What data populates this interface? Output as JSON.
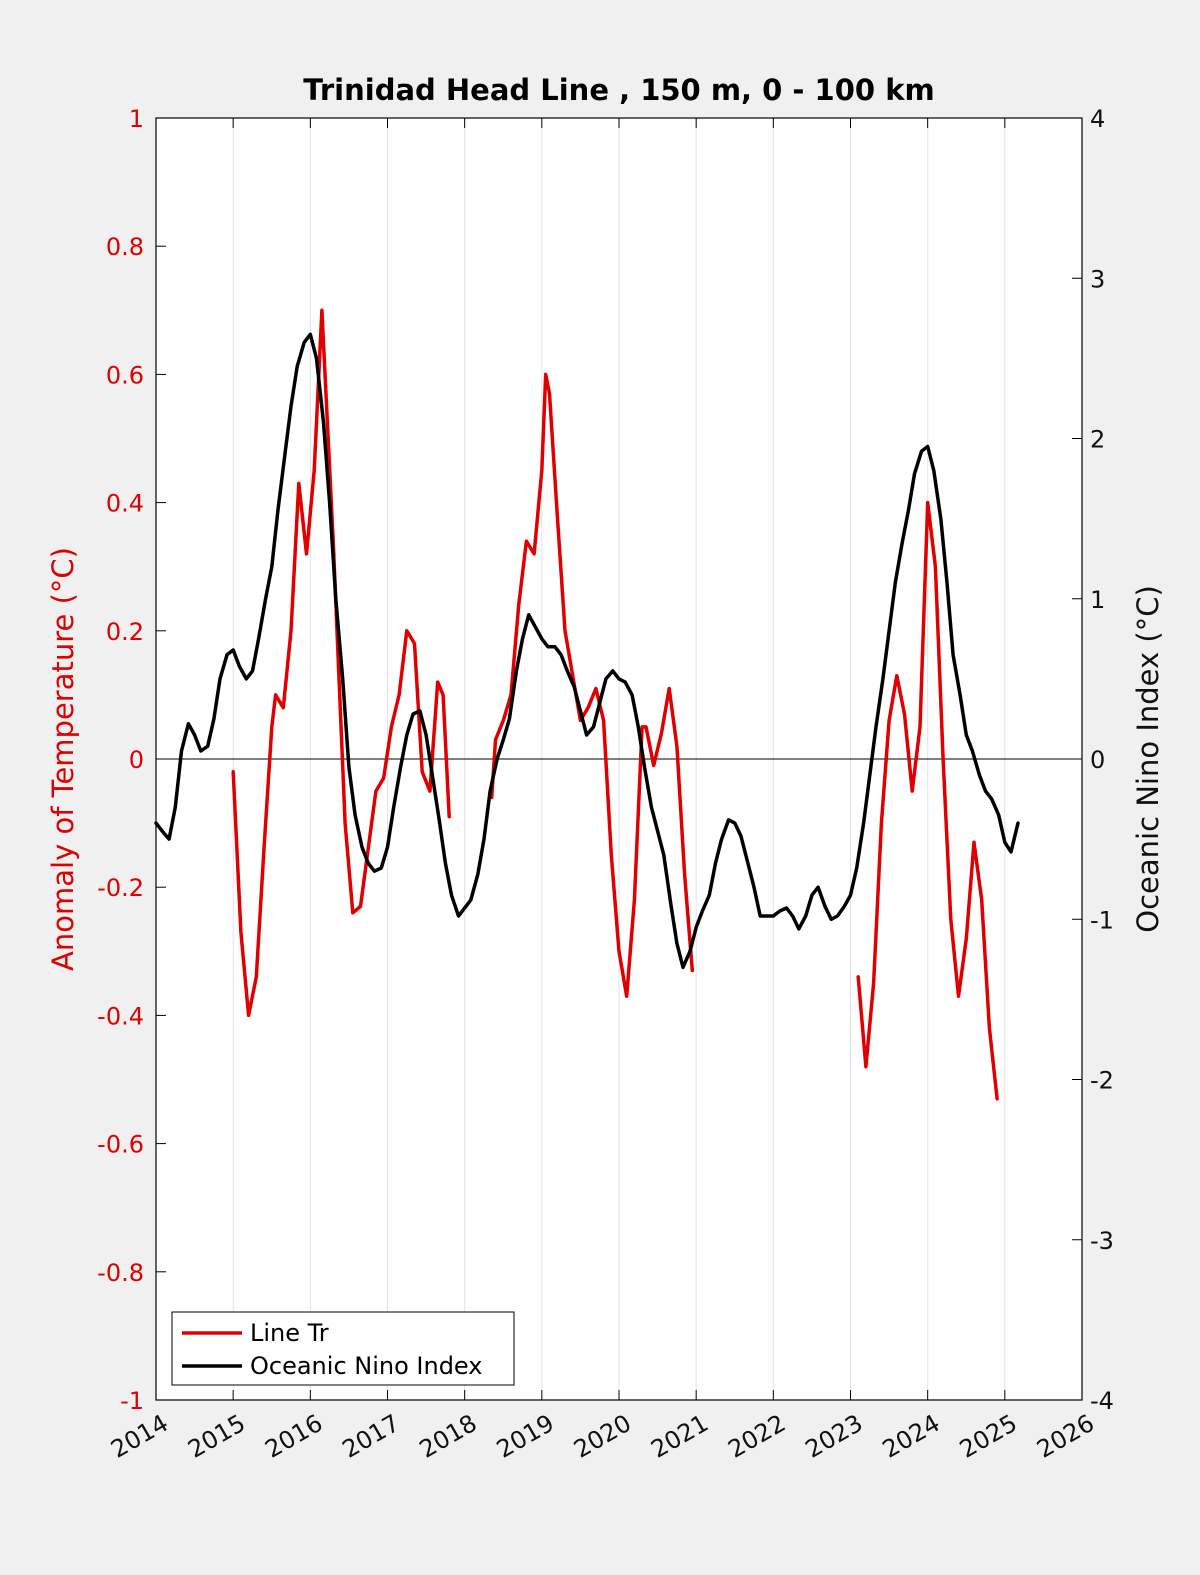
{
  "chart_data": {
    "type": "line",
    "title": "Trinidad Head Line , 150 m, 0 - 100 km",
    "x_ticks": [
      "2014",
      "2015",
      "2016",
      "2017",
      "2018",
      "2019",
      "2020",
      "2021",
      "2022",
      "2023",
      "2024",
      "2025",
      "2026"
    ],
    "xlim": [
      2014,
      2026
    ],
    "left_axis": {
      "label": "Anomaly of Temperature (°C)",
      "ylim": [
        -1,
        1
      ],
      "ticks": [
        "-1",
        "-0.8",
        "-0.6",
        "-0.4",
        "-0.2",
        "0",
        "0.2",
        "0.4",
        "0.6",
        "0.8",
        "1"
      ],
      "color": "#e00000"
    },
    "right_axis": {
      "label": "Oceanic Nino Index (°C)",
      "ylim": [
        -4,
        4
      ],
      "ticks": [
        "-4",
        "-3",
        "-2",
        "-1",
        "0",
        "1",
        "2",
        "3",
        "4"
      ],
      "color": "#000000"
    },
    "grid": "vertical",
    "legend_position": "bottom-left",
    "series": [
      {
        "name": "Line Tr",
        "axis": "left",
        "color": "#e00000",
        "segments": [
          [
            [
              2015.0,
              -0.02
            ],
            [
              2015.1,
              -0.27
            ],
            [
              2015.2,
              -0.4
            ],
            [
              2015.3,
              -0.34
            ],
            [
              2015.4,
              -0.14
            ],
            [
              2015.5,
              0.05
            ],
            [
              2015.55,
              0.1
            ],
            [
              2015.65,
              0.08
            ],
            [
              2015.75,
              0.2
            ],
            [
              2015.85,
              0.43
            ],
            [
              2015.95,
              0.32
            ],
            [
              2016.05,
              0.45
            ],
            [
              2016.15,
              0.7
            ],
            [
              2016.3,
              0.33
            ],
            [
              2016.45,
              -0.1
            ],
            [
              2016.55,
              -0.24
            ],
            [
              2016.65,
              -0.23
            ],
            [
              2016.75,
              -0.14
            ],
            [
              2016.85,
              -0.05
            ],
            [
              2016.95,
              -0.03
            ],
            [
              2017.05,
              0.05
            ],
            [
              2017.15,
              0.1
            ],
            [
              2017.25,
              0.2
            ],
            [
              2017.35,
              0.18
            ],
            [
              2017.45,
              -0.02
            ],
            [
              2017.55,
              -0.05
            ],
            [
              2017.65,
              0.12
            ],
            [
              2017.72,
              0.1
            ],
            [
              2017.8,
              -0.09
            ]
          ],
          [
            [
              2018.35,
              -0.06
            ],
            [
              2018.4,
              0.03
            ],
            [
              2018.5,
              0.06
            ],
            [
              2018.6,
              0.1
            ],
            [
              2018.7,
              0.24
            ],
            [
              2018.8,
              0.34
            ],
            [
              2018.9,
              0.32
            ],
            [
              2019.0,
              0.45
            ],
            [
              2019.05,
              0.6
            ],
            [
              2019.1,
              0.57
            ],
            [
              2019.2,
              0.38
            ],
            [
              2019.3,
              0.2
            ],
            [
              2019.4,
              0.13
            ],
            [
              2019.5,
              0.06
            ],
            [
              2019.6,
              0.08
            ],
            [
              2019.7,
              0.11
            ],
            [
              2019.8,
              0.06
            ],
            [
              2019.9,
              -0.15
            ],
            [
              2020.0,
              -0.3
            ],
            [
              2020.1,
              -0.37
            ],
            [
              2020.2,
              -0.22
            ],
            [
              2020.3,
              0.05
            ],
            [
              2020.35,
              0.05
            ],
            [
              2020.45,
              -0.01
            ],
            [
              2020.55,
              0.04
            ],
            [
              2020.65,
              0.11
            ],
            [
              2020.75,
              0.02
            ],
            [
              2020.85,
              -0.18
            ],
            [
              2020.95,
              -0.33
            ]
          ],
          [
            [
              2023.1,
              -0.34
            ],
            [
              2023.2,
              -0.48
            ],
            [
              2023.3,
              -0.35
            ],
            [
              2023.4,
              -0.1
            ],
            [
              2023.5,
              0.06
            ],
            [
              2023.6,
              0.13
            ],
            [
              2023.7,
              0.07
            ],
            [
              2023.8,
              -0.05
            ],
            [
              2023.9,
              0.05
            ],
            [
              2024.0,
              0.4
            ],
            [
              2024.1,
              0.3
            ],
            [
              2024.2,
              0.0
            ],
            [
              2024.3,
              -0.25
            ],
            [
              2024.4,
              -0.37
            ],
            [
              2024.5,
              -0.28
            ],
            [
              2024.6,
              -0.13
            ],
            [
              2024.7,
              -0.22
            ],
            [
              2024.8,
              -0.42
            ],
            [
              2024.9,
              -0.53
            ]
          ]
        ]
      },
      {
        "name": "Oceanic Nino Index",
        "axis": "right",
        "color": "#000000",
        "points": [
          [
            2014.0,
            -0.4
          ],
          [
            2014.08,
            -0.45
          ],
          [
            2014.17,
            -0.5
          ],
          [
            2014.25,
            -0.3
          ],
          [
            2014.33,
            0.05
          ],
          [
            2014.42,
            0.22
          ],
          [
            2014.5,
            0.15
          ],
          [
            2014.58,
            0.05
          ],
          [
            2014.67,
            0.08
          ],
          [
            2014.75,
            0.25
          ],
          [
            2014.83,
            0.5
          ],
          [
            2014.92,
            0.65
          ],
          [
            2015.0,
            0.68
          ],
          [
            2015.08,
            0.58
          ],
          [
            2015.17,
            0.5
          ],
          [
            2015.25,
            0.55
          ],
          [
            2015.33,
            0.75
          ],
          [
            2015.42,
            1.0
          ],
          [
            2015.5,
            1.2
          ],
          [
            2015.58,
            1.55
          ],
          [
            2015.67,
            1.9
          ],
          [
            2015.75,
            2.2
          ],
          [
            2015.83,
            2.45
          ],
          [
            2015.92,
            2.6
          ],
          [
            2016.0,
            2.65
          ],
          [
            2016.08,
            2.5
          ],
          [
            2016.17,
            2.1
          ],
          [
            2016.25,
            1.6
          ],
          [
            2016.33,
            1.0
          ],
          [
            2016.42,
            0.5
          ],
          [
            2016.5,
            -0.05
          ],
          [
            2016.58,
            -0.35
          ],
          [
            2016.67,
            -0.55
          ],
          [
            2016.75,
            -0.65
          ],
          [
            2016.83,
            -0.7
          ],
          [
            2016.92,
            -0.68
          ],
          [
            2017.0,
            -0.55
          ],
          [
            2017.08,
            -0.3
          ],
          [
            2017.17,
            -0.05
          ],
          [
            2017.25,
            0.15
          ],
          [
            2017.33,
            0.28
          ],
          [
            2017.42,
            0.3
          ],
          [
            2017.5,
            0.15
          ],
          [
            2017.58,
            -0.1
          ],
          [
            2017.67,
            -0.38
          ],
          [
            2017.75,
            -0.65
          ],
          [
            2017.83,
            -0.85
          ],
          [
            2017.92,
            -0.98
          ],
          [
            2018.0,
            -0.93
          ],
          [
            2018.08,
            -0.88
          ],
          [
            2018.17,
            -0.72
          ],
          [
            2018.25,
            -0.5
          ],
          [
            2018.33,
            -0.2
          ],
          [
            2018.42,
            0.0
          ],
          [
            2018.5,
            0.12
          ],
          [
            2018.58,
            0.25
          ],
          [
            2018.67,
            0.55
          ],
          [
            2018.75,
            0.75
          ],
          [
            2018.83,
            0.9
          ],
          [
            2018.92,
            0.82
          ],
          [
            2019.0,
            0.75
          ],
          [
            2019.08,
            0.7
          ],
          [
            2019.17,
            0.7
          ],
          [
            2019.25,
            0.65
          ],
          [
            2019.33,
            0.55
          ],
          [
            2019.42,
            0.45
          ],
          [
            2019.5,
            0.3
          ],
          [
            2019.58,
            0.15
          ],
          [
            2019.67,
            0.2
          ],
          [
            2019.75,
            0.35
          ],
          [
            2019.83,
            0.5
          ],
          [
            2019.92,
            0.55
          ],
          [
            2020.0,
            0.5
          ],
          [
            2020.08,
            0.48
          ],
          [
            2020.17,
            0.4
          ],
          [
            2020.25,
            0.2
          ],
          [
            2020.33,
            -0.05
          ],
          [
            2020.42,
            -0.3
          ],
          [
            2020.5,
            -0.45
          ],
          [
            2020.58,
            -0.6
          ],
          [
            2020.67,
            -0.9
          ],
          [
            2020.75,
            -1.15
          ],
          [
            2020.83,
            -1.3
          ],
          [
            2020.92,
            -1.2
          ],
          [
            2021.0,
            -1.05
          ],
          [
            2021.08,
            -0.95
          ],
          [
            2021.17,
            -0.85
          ],
          [
            2021.25,
            -0.65
          ],
          [
            2021.33,
            -0.5
          ],
          [
            2021.42,
            -0.38
          ],
          [
            2021.5,
            -0.4
          ],
          [
            2021.58,
            -0.48
          ],
          [
            2021.67,
            -0.65
          ],
          [
            2021.75,
            -0.8
          ],
          [
            2021.83,
            -0.98
          ],
          [
            2021.92,
            -0.98
          ],
          [
            2022.0,
            -0.98
          ],
          [
            2022.08,
            -0.95
          ],
          [
            2022.17,
            -0.93
          ],
          [
            2022.25,
            -0.98
          ],
          [
            2022.33,
            -1.06
          ],
          [
            2022.42,
            -0.98
          ],
          [
            2022.5,
            -0.85
          ],
          [
            2022.58,
            -0.8
          ],
          [
            2022.67,
            -0.92
          ],
          [
            2022.75,
            -1.0
          ],
          [
            2022.83,
            -0.98
          ],
          [
            2022.92,
            -0.92
          ],
          [
            2023.0,
            -0.85
          ],
          [
            2023.08,
            -0.68
          ],
          [
            2023.17,
            -0.4
          ],
          [
            2023.25,
            -0.1
          ],
          [
            2023.33,
            0.2
          ],
          [
            2023.42,
            0.5
          ],
          [
            2023.5,
            0.8
          ],
          [
            2023.58,
            1.1
          ],
          [
            2023.67,
            1.35
          ],
          [
            2023.75,
            1.55
          ],
          [
            2023.83,
            1.78
          ],
          [
            2023.92,
            1.92
          ],
          [
            2024.0,
            1.95
          ],
          [
            2024.08,
            1.8
          ],
          [
            2024.17,
            1.5
          ],
          [
            2024.25,
            1.1
          ],
          [
            2024.33,
            0.65
          ],
          [
            2024.42,
            0.4
          ],
          [
            2024.5,
            0.15
          ],
          [
            2024.58,
            0.05
          ],
          [
            2024.67,
            -0.1
          ],
          [
            2024.75,
            -0.2
          ],
          [
            2024.83,
            -0.25
          ],
          [
            2024.92,
            -0.35
          ],
          [
            2025.0,
            -0.52
          ],
          [
            2025.08,
            -0.58
          ],
          [
            2025.17,
            -0.4
          ]
        ]
      }
    ]
  }
}
